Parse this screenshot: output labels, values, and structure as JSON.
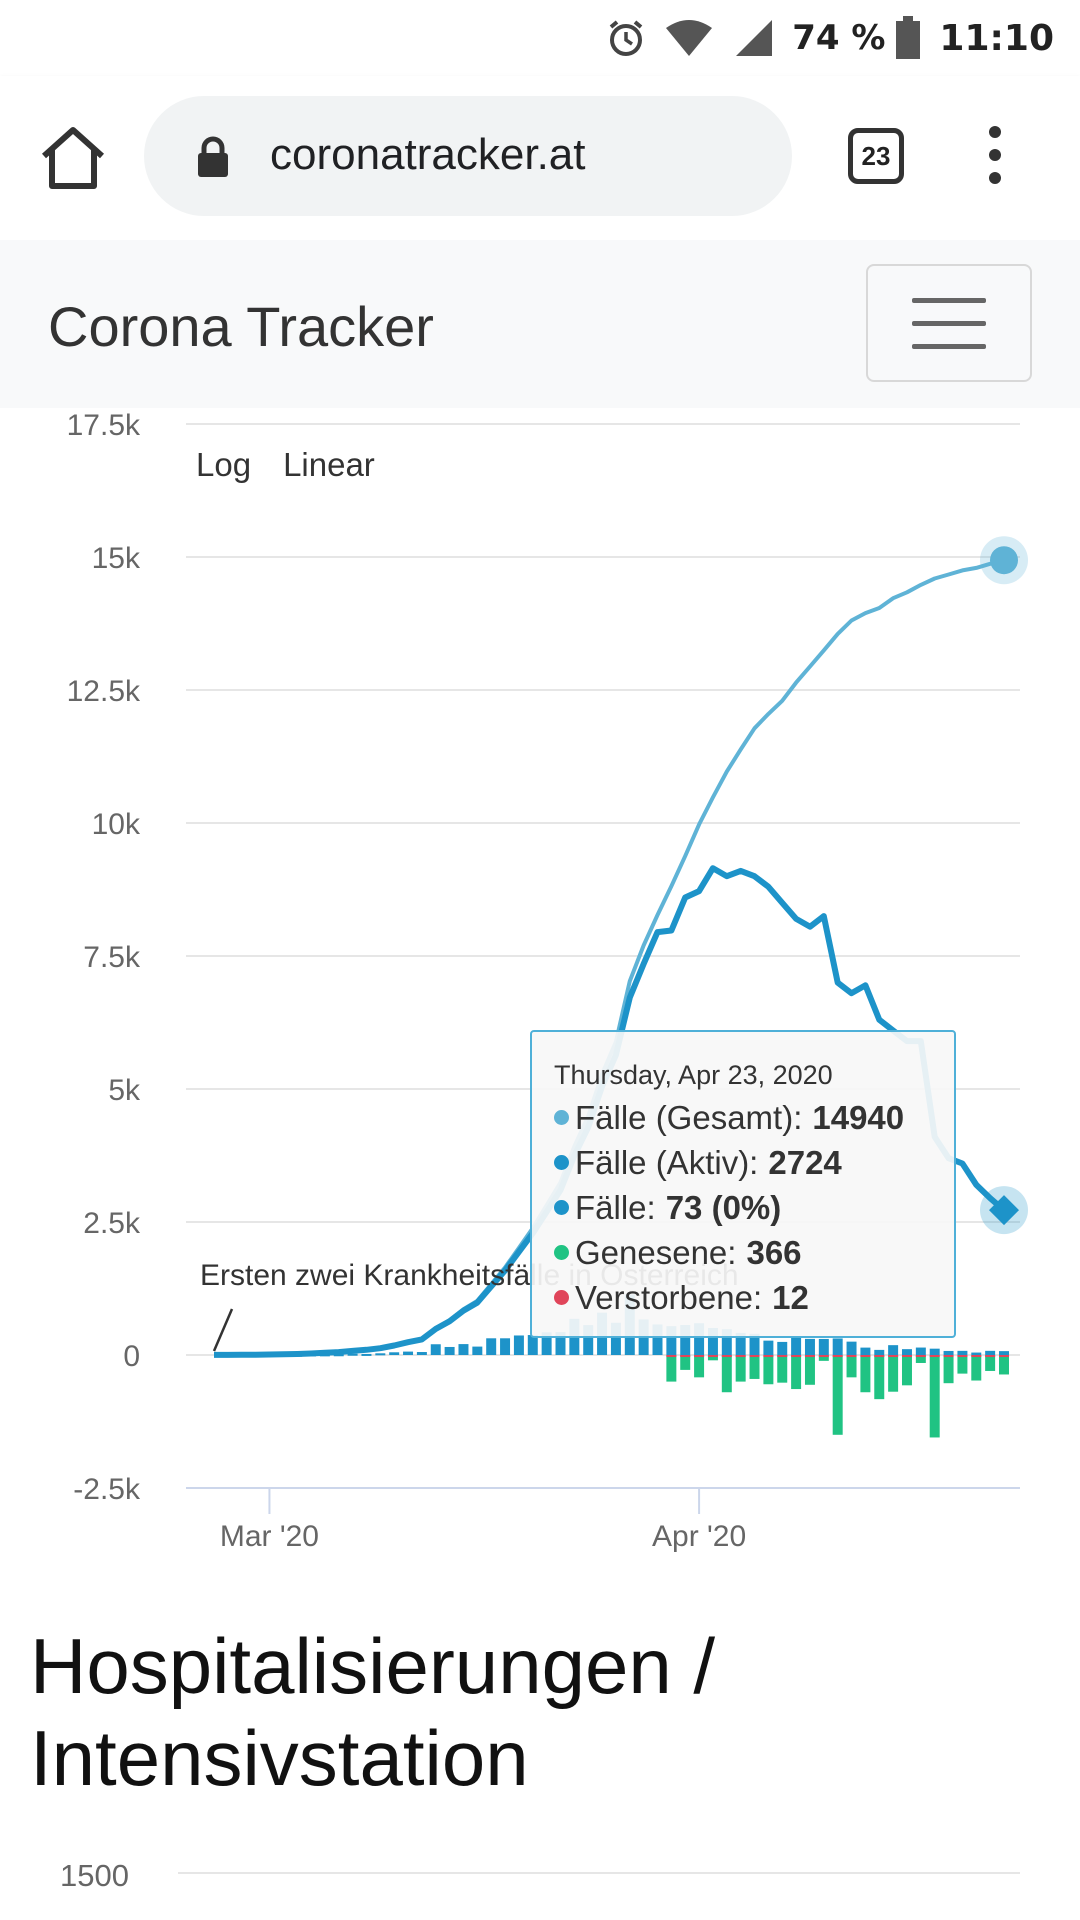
{
  "status_bar": {
    "battery_percent": "74 %",
    "time": "11:10",
    "icons": [
      "alarm-icon",
      "wifi-icon",
      "signal-icon",
      "battery-icon"
    ]
  },
  "browser": {
    "url": "coronatracker.at",
    "tab_count": "23",
    "icons": [
      "home-icon",
      "lock-icon",
      "tabs-icon",
      "overflow-menu-icon"
    ]
  },
  "site": {
    "brand": "Corona Tracker",
    "menu_icon": "hamburger-icon"
  },
  "chart": {
    "scale_buttons": [
      "Log",
      "Linear"
    ],
    "y_ticks": [
      "17.5k",
      "15k",
      "12.5k",
      "10k",
      "7.5k",
      "5k",
      "2.5k",
      "0",
      "-2.5k"
    ],
    "x_ticks": [
      "Mar '20",
      "Apr '20"
    ],
    "annotation": "Ersten zwei Krankheitsfälle in Österreich",
    "tooltip": {
      "date": "Thursday, Apr 23, 2020",
      "rows": [
        {
          "label": "Fälle (Gesamt): ",
          "value": "14940",
          "color": "#5fb3d6"
        },
        {
          "label": "Fälle (Aktiv): ",
          "value": "2724",
          "color": "#1d93c9"
        },
        {
          "label": "Fälle: ",
          "value": "73 (0%)",
          "color": "#1d93c9"
        },
        {
          "label": "Genesene: ",
          "value": "366",
          "color": "#20c383"
        },
        {
          "label": "Verstorbene: ",
          "value": "12",
          "color": "#e0455a"
        }
      ]
    }
  },
  "chart_data": {
    "type": "line",
    "ylim": [
      -2500,
      17500
    ],
    "x_dates_start": "2020-02-25",
    "series": [
      {
        "name": "Fälle (Gesamt)",
        "color": "#5fb3d6",
        "values": [
          2,
          2,
          3,
          5,
          9,
          14,
          18,
          29,
          41,
          55,
          79,
          99,
          131,
          182,
          246,
          302,
          504,
          655,
          860,
          1018,
          1332,
          1646,
          2013,
          2388,
          2814,
          3244,
          3924,
          4486,
          5282,
          5888,
          7029,
          7697,
          8271,
          8813,
          9377,
          9974,
          10482,
          10967,
          11383,
          11781,
          12051,
          12297,
          12639,
          12942,
          13244,
          13555,
          13806,
          13945,
          14041,
          14226,
          14336,
          14476,
          14595,
          14671,
          14749,
          14795,
          14873,
          14940
        ]
      },
      {
        "name": "Fälle (Aktiv)",
        "color": "#1d93c9",
        "values": [
          2,
          2,
          3,
          5,
          9,
          14,
          18,
          29,
          41,
          55,
          78,
          97,
          128,
          178,
          240,
          294,
          490,
          636,
          835,
          985,
          1290,
          1590,
          1940,
          2290,
          2690,
          3100,
          3750,
          4280,
          5050,
          5640,
          6720,
          7350,
          7950,
          7980,
          8600,
          8720,
          9150,
          9000,
          9100,
          9000,
          8800,
          8500,
          8200,
          8050,
          8250,
          7000,
          6800,
          6950,
          6300,
          6100,
          5900,
          5900,
          4100,
          3700,
          3600,
          3200,
          2950,
          2724
        ]
      }
    ],
    "bars": [
      {
        "name": "Fälle (neu)",
        "color": "#1d93c9",
        "values": [
          0,
          0,
          0,
          2,
          4,
          5,
          4,
          11,
          12,
          14,
          24,
          20,
          32,
          51,
          64,
          56,
          202,
          151,
          205,
          158,
          314,
          314,
          367,
          375,
          426,
          430,
          680,
          562,
          796,
          606,
          1141,
          668,
          574,
          542,
          564,
          597,
          508,
          485,
          416,
          398,
          270,
          246,
          342,
          303,
          302,
          311,
          251,
          139,
          96,
          185,
          110,
          140,
          119,
          76,
          78,
          46,
          78,
          73
        ]
      },
      {
        "name": "Genesene",
        "color": "#20c383",
        "values": [
          0,
          0,
          0,
          0,
          0,
          0,
          0,
          0,
          0,
          0,
          0,
          0,
          0,
          0,
          0,
          0,
          0,
          0,
          0,
          0,
          0,
          0,
          0,
          0,
          0,
          0,
          0,
          0,
          0,
          0,
          0,
          0,
          0,
          -500,
          -280,
          -420,
          -100,
          -700,
          -500,
          -450,
          -550,
          -520,
          -640,
          -560,
          -110,
          -1500,
          -420,
          -700,
          -830,
          -690,
          -570,
          -150,
          -1550,
          -530,
          -350,
          -480,
          -300,
          -366
        ]
      },
      {
        "name": "Verstorbene",
        "color": "#e0455a",
        "values": [
          0,
          0,
          0,
          0,
          0,
          0,
          0,
          0,
          0,
          0,
          0,
          0,
          0,
          0,
          0,
          0,
          0,
          0,
          0,
          0,
          0,
          0,
          0,
          0,
          0,
          0,
          0,
          0,
          0,
          0,
          0,
          0,
          0,
          -18,
          -22,
          -18,
          -23,
          -24,
          -20,
          -18,
          -22,
          -16,
          -21,
          -19,
          -17,
          -14,
          -15,
          -16,
          -11,
          -13,
          -18,
          -10,
          -12,
          -9,
          -10,
          -8,
          -11,
          -12
        ]
      }
    ],
    "title": "",
    "xlabel": "",
    "ylabel": "",
    "grid": true,
    "legend": "none"
  },
  "next_section": {
    "title": "Hospitalisierungen / Intensivstation",
    "first_tick": "1500"
  }
}
